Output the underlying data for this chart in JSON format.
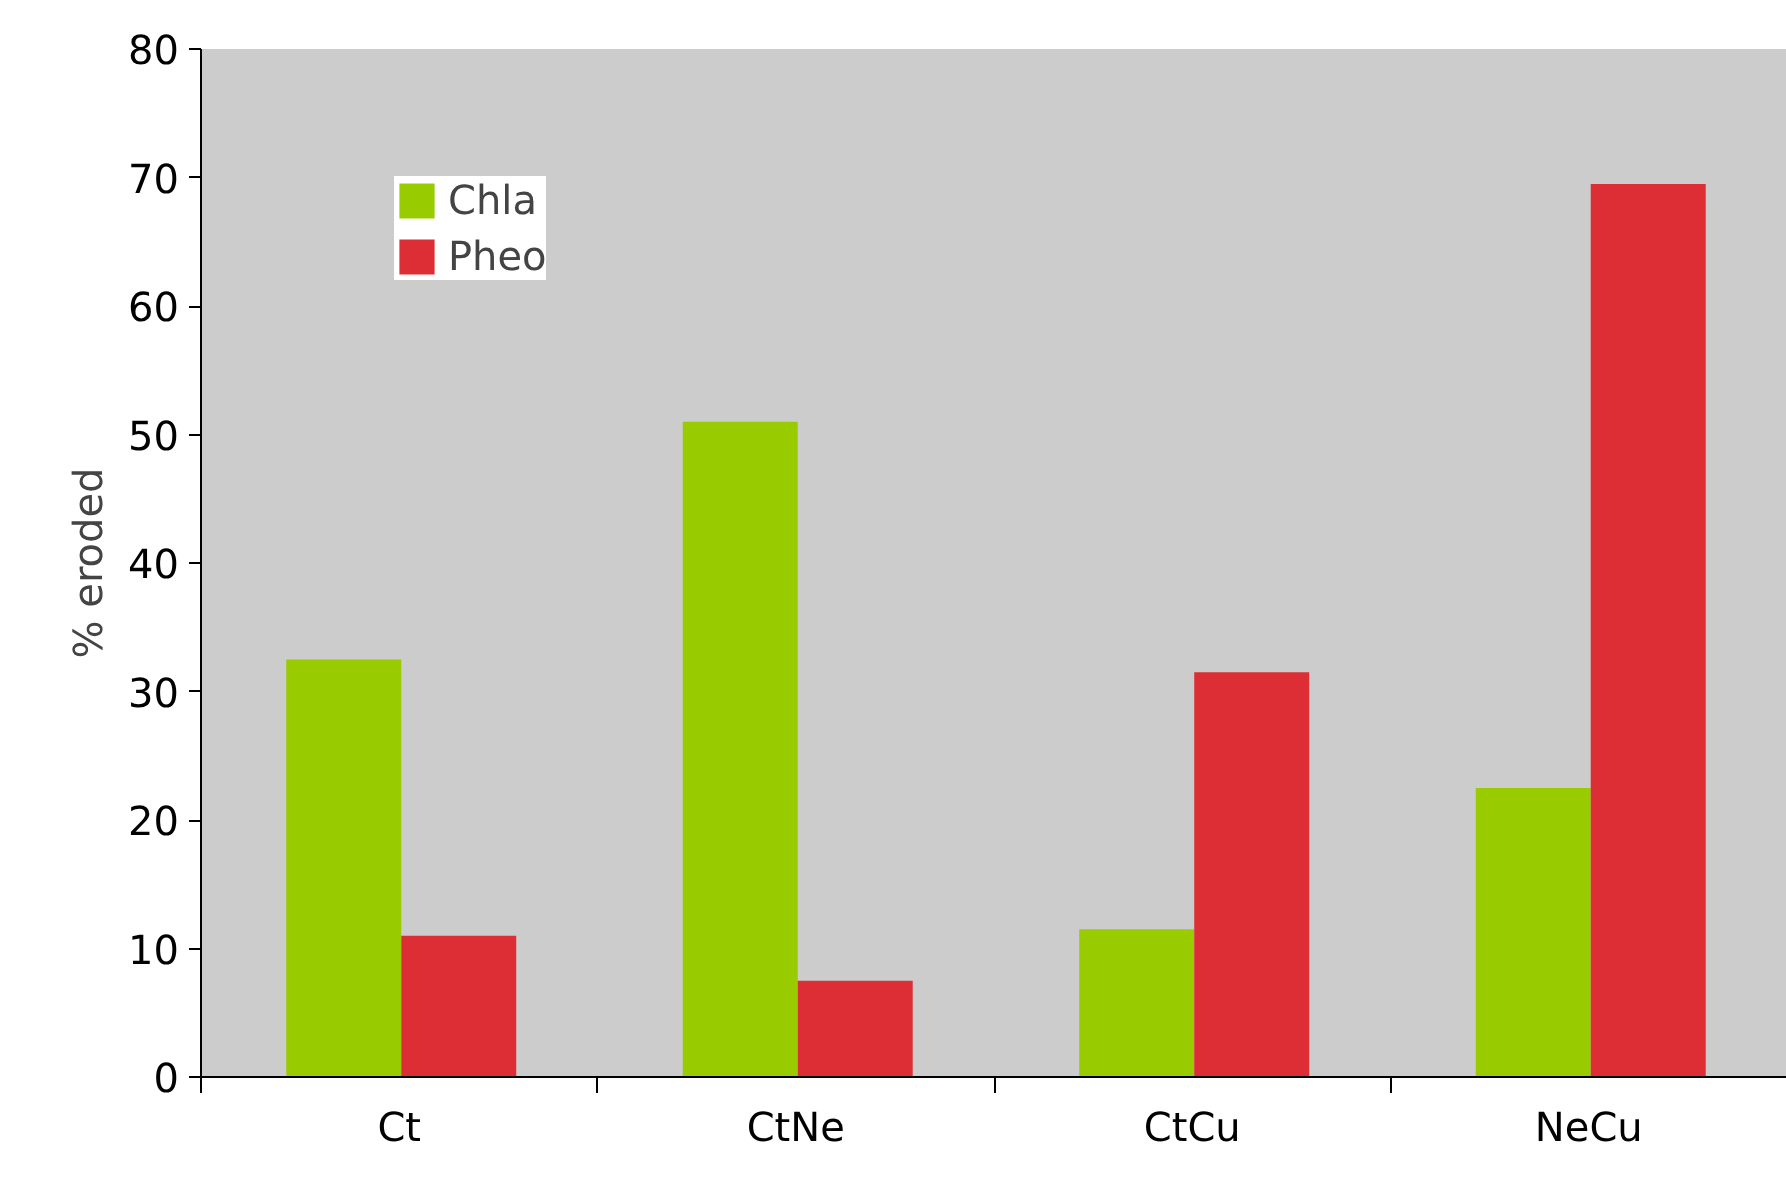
{
  "chart_data": {
    "type": "bar",
    "ylabel": "% eroded",
    "categories": [
      "Ct",
      "CtNe",
      "CtCu",
      "NeCu"
    ],
    "series": [
      {
        "name": "Chla",
        "color": "#99cc00",
        "values": [
          32.5,
          51,
          11.5,
          22.5
        ]
      },
      {
        "name": "Pheo",
        "color": "#dd2e35",
        "values": [
          11,
          7.5,
          31.5,
          69.5
        ]
      }
    ],
    "ylim": [
      0,
      80
    ],
    "yticks": [
      0,
      10,
      20,
      30,
      40,
      50,
      60,
      70,
      80
    ],
    "grid": false,
    "legend": "top left"
  }
}
